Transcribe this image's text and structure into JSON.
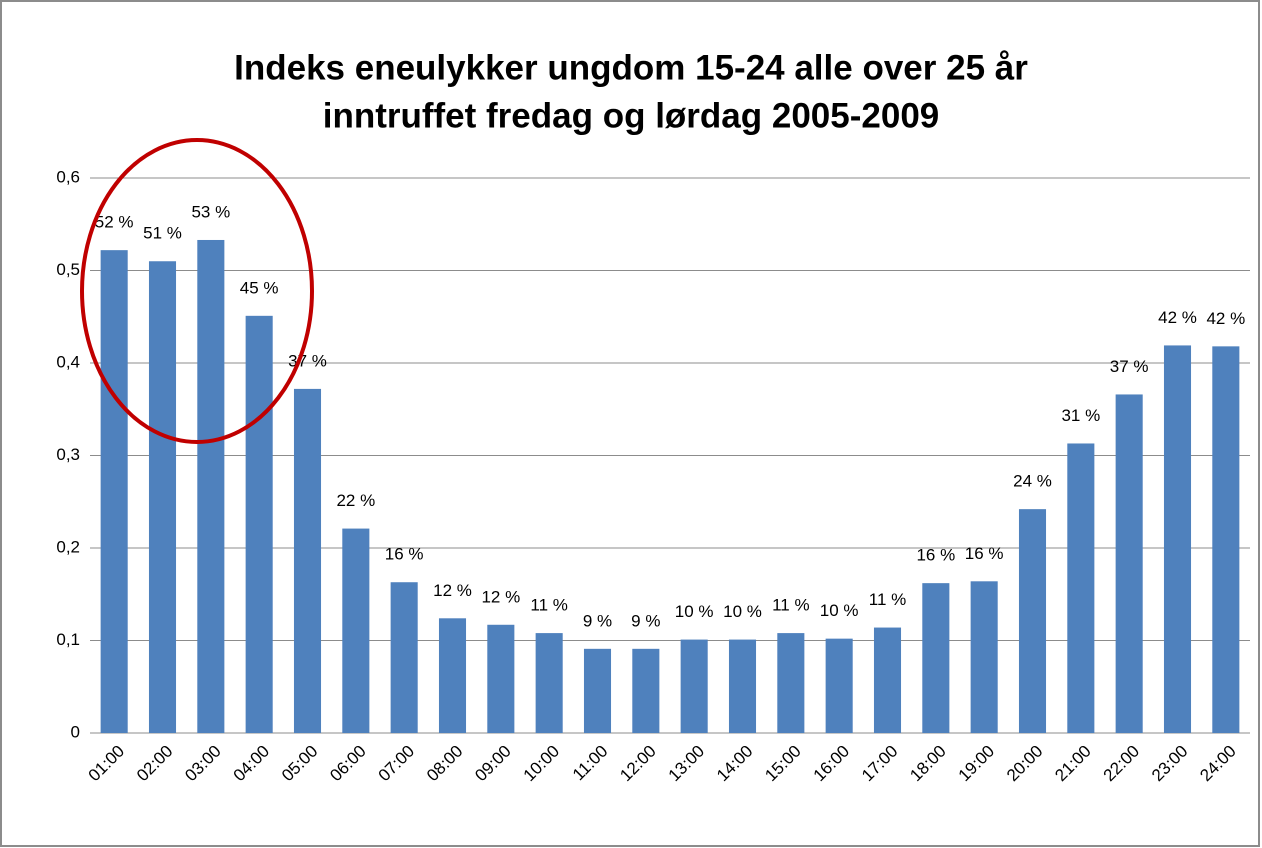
{
  "chart_data": {
    "type": "bar",
    "title": [
      "Indeks eneulykker ungdom 15-24 alle over 25 år",
      "inntruffet fredag og lørdag 2005-2009"
    ],
    "categories": [
      "01:00",
      "02:00",
      "03:00",
      "04:00",
      "05:00",
      "06:00",
      "07:00",
      "08:00",
      "09:00",
      "10:00",
      "11:00",
      "12:00",
      "13:00",
      "14:00",
      "15:00",
      "16:00",
      "17:00",
      "18:00",
      "19:00",
      "20:00",
      "21:00",
      "22:00",
      "23:00",
      "24:00"
    ],
    "values": [
      0.522,
      0.51,
      0.533,
      0.451,
      0.372,
      0.221,
      0.163,
      0.124,
      0.117,
      0.108,
      0.091,
      0.091,
      0.101,
      0.101,
      0.108,
      0.102,
      0.114,
      0.162,
      0.164,
      0.242,
      0.313,
      0.366,
      0.419,
      0.418
    ],
    "value_labels": [
      "52 %",
      "51 %",
      "53 %",
      "45 %",
      "37 %",
      "22 %",
      "16 %",
      "12 %",
      "12 %",
      "11 %",
      "9 %",
      "9 %",
      "10 %",
      "10 %",
      "11 %",
      "10 %",
      "11 %",
      "16 %",
      "16 %",
      "24 %",
      "31 %",
      "37 %",
      "42 %",
      "42 %"
    ],
    "color": "#4f81bd",
    "ylim": [
      0,
      0.6
    ],
    "yticks": [
      0,
      {
        "value": 0.1,
        "label": "0,1"
      },
      {
        "value": 0.2,
        "label": "0,2"
      },
      {
        "value": 0.3,
        "label": "0,3"
      },
      {
        "value": 0.4,
        "label": "0,4"
      },
      {
        "value": 0.5,
        "label": "0,5"
      },
      {
        "value": 0.6,
        "label": "0,6"
      }
    ],
    "grid": true
  }
}
